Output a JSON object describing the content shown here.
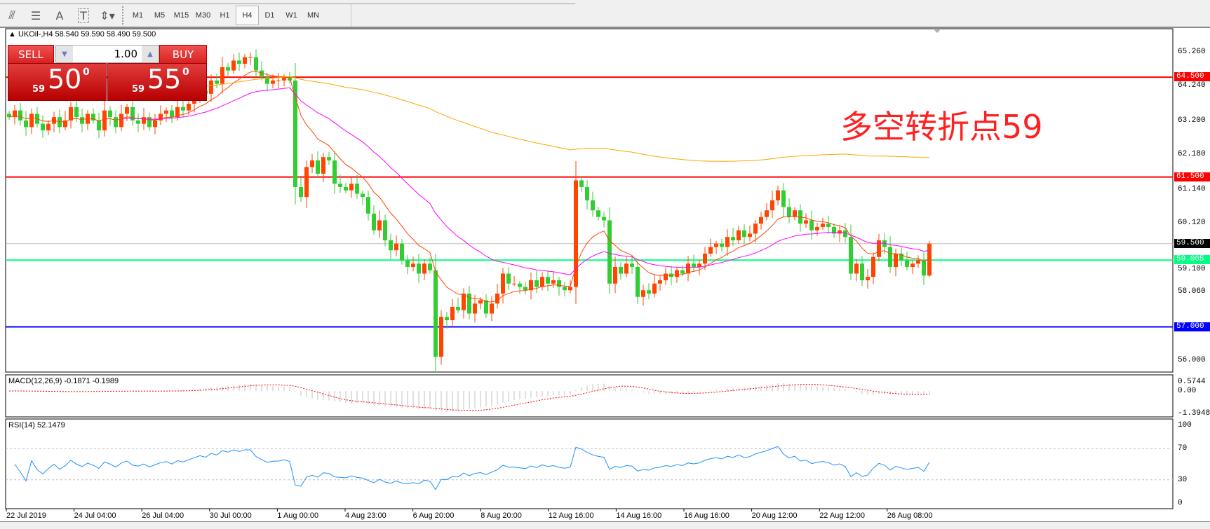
{
  "toolbar": {
    "tools": [
      {
        "icon": "fibonacci-fan-icon"
      },
      {
        "icon": "fibonacci-lines-icon"
      },
      {
        "icon": "text-icon",
        "label": "A"
      },
      {
        "icon": "text-label-icon",
        "label": "T"
      },
      {
        "icon": "arrows-dropdown-icon"
      }
    ],
    "timeframes": [
      "M1",
      "M5",
      "M15",
      "M30",
      "H1",
      "H4",
      "D1",
      "W1",
      "MN"
    ],
    "active_timeframe": "H4"
  },
  "chart": {
    "title": "UKOil-,H4  58.540 59.590 58.490 59.500",
    "symbol": "UKOil-",
    "period": "H4",
    "annotation": "多空转折点59",
    "colors": {
      "bull": "#ff4500",
      "bear": "#32cd32",
      "ma_fast": "#ff4500",
      "ma_mid": "#ff00ff",
      "ma_slow": "#ffa500"
    }
  },
  "trade_panel": {
    "sell_label": "SELL",
    "buy_label": "BUY",
    "volume": "1.00",
    "sell_price": {
      "prefix": "59",
      "main": "50",
      "sup": "0"
    },
    "buy_price": {
      "prefix": "59",
      "main": "55",
      "sup": "0"
    }
  },
  "price_axis": {
    "ticks": [
      "65.260",
      "64.240",
      "63.200",
      "62.180",
      "61.140",
      "60.120",
      "59.100",
      "58.060",
      "56.000"
    ]
  },
  "levels": [
    {
      "price": "64.500",
      "color": "#ff0000"
    },
    {
      "price": "61.500",
      "color": "#ff0000"
    },
    {
      "price": "59.500",
      "color": "#000000",
      "kind": "current"
    },
    {
      "price": "59.005",
      "color": "#00ff80"
    },
    {
      "price": "57.000",
      "color": "#0000ff"
    }
  ],
  "macd": {
    "label": "MACD(12,26,9) -0.1871 -0.1989",
    "ticks": [
      "0.5744",
      "0.00",
      "-1.3948"
    ]
  },
  "rsi": {
    "label": "RSI(14) 52.1479",
    "ticks": [
      "100",
      "70",
      "30",
      "0"
    ]
  },
  "time_axis": [
    "22 Jul 2019",
    "24 Jul 04:00",
    "26 Jul 04:00",
    "30 Jul 00:00",
    "1 Aug 00:00",
    "4 Aug 23:00",
    "6 Aug 20:00",
    "8 Aug 20:00",
    "12 Aug 16:00",
    "14 Aug 16:00",
    "16 Aug 16:00",
    "20 Aug 12:00",
    "22 Aug 12:00",
    "26 Aug 08:00"
  ],
  "chart_data": {
    "type": "candlestick",
    "ylim": [
      55.6,
      65.6
    ],
    "last_bar": {
      "open": 58.54,
      "high": 59.59,
      "low": 58.49,
      "close": 59.5
    },
    "closes": [
      63.3,
      63.5,
      63.2,
      63.0,
      63.4,
      63.1,
      62.9,
      63.1,
      63.3,
      63.0,
      63.2,
      63.6,
      63.3,
      63.1,
      63.4,
      63.2,
      62.9,
      63.5,
      63.3,
      63.0,
      63.4,
      63.6,
      63.2,
      63.1,
      63.3,
      63.0,
      63.2,
      63.4,
      63.5,
      63.3,
      63.6,
      63.5,
      63.7,
      63.9,
      64.1,
      64.0,
      64.4,
      64.3,
      64.8,
      64.7,
      65.0,
      64.9,
      65.1,
      65.1,
      64.7,
      64.5,
      64.3,
      64.4,
      64.4,
      64.5,
      64.4,
      61.2,
      60.9,
      61.8,
      62.0,
      61.6,
      62.1,
      62.0,
      61.3,
      61.2,
      61.1,
      61.3,
      61.0,
      60.9,
      60.4,
      59.9,
      60.2,
      59.6,
      59.3,
      59.5,
      59.0,
      58.8,
      58.9,
      58.6,
      58.9,
      58.7,
      56.1,
      57.3,
      57.2,
      57.6,
      57.5,
      58.0,
      57.4,
      57.7,
      57.8,
      57.4,
      57.7,
      58.0,
      58.6,
      58.3,
      58.3,
      58.2,
      58.1,
      58.4,
      58.2,
      58.5,
      58.3,
      58.4,
      58.2,
      58.1,
      58.2,
      61.4,
      61.2,
      60.8,
      60.5,
      60.3,
      60.2,
      58.3,
      58.8,
      58.6,
      58.9,
      58.8,
      57.9,
      58.1,
      58.0,
      58.3,
      58.4,
      58.6,
      58.5,
      58.7,
      58.6,
      58.9,
      58.8,
      58.9,
      59.2,
      59.4,
      59.5,
      59.4,
      59.7,
      59.6,
      59.9,
      59.7,
      59.8,
      60.1,
      60.3,
      60.5,
      60.8,
      61.1,
      60.6,
      60.3,
      60.5,
      60.1,
      60.2,
      59.9,
      60.0,
      60.1,
      60.0,
      59.8,
      59.9,
      59.7,
      58.6,
      58.9,
      58.4,
      58.5,
      59.1,
      59.6,
      59.4,
      58.8,
      59.2,
      59.0,
      58.8,
      58.9,
      59.0,
      58.54,
      59.5
    ]
  }
}
